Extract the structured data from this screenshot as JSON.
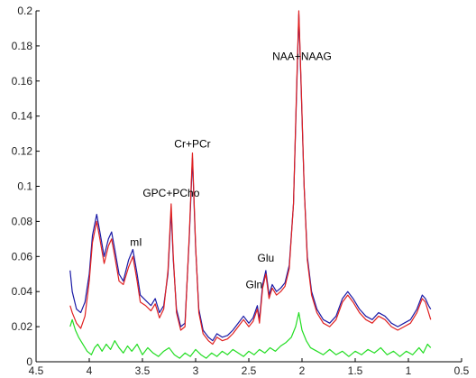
{
  "chart_data": {
    "type": "line",
    "title": "",
    "xlabel": "",
    "ylabel": "",
    "xlim": [
      4.5,
      0.5
    ],
    "ylim": [
      0,
      0.2
    ],
    "x_reversed": true,
    "grid": false,
    "x_ticks": [
      "4.5",
      "4",
      "3.5",
      "3",
      "2.5",
      "2",
      "1.5",
      "1",
      "0.5"
    ],
    "x_tick_values": [
      4.5,
      4,
      3.5,
      3,
      2.5,
      2,
      1.5,
      1,
      0.5
    ],
    "y_ticks": [
      "0",
      "0.02",
      "0.04",
      "0.06",
      "0.08",
      "0.1",
      "0.12",
      "0.14",
      "0.16",
      "0.18",
      "0.2"
    ],
    "y_tick_values": [
      0,
      0.02,
      0.04,
      0.06,
      0.08,
      0.1,
      0.12,
      0.14,
      0.16,
      0.18,
      0.2
    ],
    "series": [
      {
        "color": "#1a1aa6",
        "style": "solid",
        "points": [
          [
            4.18,
            0.052
          ],
          [
            4.16,
            0.04
          ],
          [
            4.12,
            0.03
          ],
          [
            4.08,
            0.028
          ],
          [
            4.04,
            0.034
          ],
          [
            4.0,
            0.05
          ],
          [
            3.97,
            0.072
          ],
          [
            3.93,
            0.084
          ],
          [
            3.9,
            0.074
          ],
          [
            3.86,
            0.06
          ],
          [
            3.82,
            0.07
          ],
          [
            3.79,
            0.074
          ],
          [
            3.76,
            0.064
          ],
          [
            3.72,
            0.05
          ],
          [
            3.68,
            0.046
          ],
          [
            3.63,
            0.058
          ],
          [
            3.59,
            0.064
          ],
          [
            3.55,
            0.05
          ],
          [
            3.52,
            0.038
          ],
          [
            3.47,
            0.035
          ],
          [
            3.42,
            0.032
          ],
          [
            3.38,
            0.036
          ],
          [
            3.34,
            0.028
          ],
          [
            3.3,
            0.032
          ],
          [
            3.26,
            0.05
          ],
          [
            3.23,
            0.086
          ],
          [
            3.21,
            0.058
          ],
          [
            3.18,
            0.03
          ],
          [
            3.14,
            0.02
          ],
          [
            3.1,
            0.022
          ],
          [
            3.06,
            0.07
          ],
          [
            3.03,
            0.116
          ],
          [
            3.0,
            0.065
          ],
          [
            2.97,
            0.03
          ],
          [
            2.93,
            0.018
          ],
          [
            2.88,
            0.014
          ],
          [
            2.84,
            0.012
          ],
          [
            2.8,
            0.016
          ],
          [
            2.75,
            0.014
          ],
          [
            2.7,
            0.015
          ],
          [
            2.65,
            0.018
          ],
          [
            2.6,
            0.022
          ],
          [
            2.55,
            0.026
          ],
          [
            2.5,
            0.022
          ],
          [
            2.46,
            0.025
          ],
          [
            2.42,
            0.032
          ],
          [
            2.4,
            0.024
          ],
          [
            2.37,
            0.044
          ],
          [
            2.34,
            0.052
          ],
          [
            2.31,
            0.038
          ],
          [
            2.28,
            0.044
          ],
          [
            2.24,
            0.04
          ],
          [
            2.2,
            0.042
          ],
          [
            2.16,
            0.045
          ],
          [
            2.12,
            0.055
          ],
          [
            2.08,
            0.09
          ],
          [
            2.05,
            0.155
          ],
          [
            2.03,
            0.198
          ],
          [
            2.01,
            0.16
          ],
          [
            1.98,
            0.1
          ],
          [
            1.95,
            0.06
          ],
          [
            1.91,
            0.04
          ],
          [
            1.86,
            0.03
          ],
          [
            1.8,
            0.024
          ],
          [
            1.74,
            0.022
          ],
          [
            1.68,
            0.026
          ],
          [
            1.62,
            0.036
          ],
          [
            1.57,
            0.04
          ],
          [
            1.52,
            0.036
          ],
          [
            1.46,
            0.03
          ],
          [
            1.4,
            0.026
          ],
          [
            1.34,
            0.024
          ],
          [
            1.28,
            0.028
          ],
          [
            1.22,
            0.026
          ],
          [
            1.16,
            0.022
          ],
          [
            1.1,
            0.02
          ],
          [
            1.04,
            0.022
          ],
          [
            0.98,
            0.024
          ],
          [
            0.92,
            0.03
          ],
          [
            0.87,
            0.038
          ],
          [
            0.84,
            0.036
          ],
          [
            0.81,
            0.032
          ],
          [
            0.79,
            0.03
          ]
        ]
      },
      {
        "color": "#e02020",
        "style": "solid",
        "points": [
          [
            4.18,
            0.032
          ],
          [
            4.16,
            0.028
          ],
          [
            4.12,
            0.022
          ],
          [
            4.08,
            0.019
          ],
          [
            4.04,
            0.026
          ],
          [
            4.0,
            0.046
          ],
          [
            3.97,
            0.068
          ],
          [
            3.93,
            0.08
          ],
          [
            3.9,
            0.07
          ],
          [
            3.86,
            0.056
          ],
          [
            3.82,
            0.066
          ],
          [
            3.79,
            0.07
          ],
          [
            3.76,
            0.06
          ],
          [
            3.72,
            0.046
          ],
          [
            3.68,
            0.044
          ],
          [
            3.63,
            0.054
          ],
          [
            3.59,
            0.06
          ],
          [
            3.55,
            0.046
          ],
          [
            3.52,
            0.034
          ],
          [
            3.47,
            0.032
          ],
          [
            3.42,
            0.029
          ],
          [
            3.38,
            0.033
          ],
          [
            3.34,
            0.025
          ],
          [
            3.3,
            0.03
          ],
          [
            3.26,
            0.052
          ],
          [
            3.23,
            0.09
          ],
          [
            3.21,
            0.06
          ],
          [
            3.18,
            0.028
          ],
          [
            3.14,
            0.018
          ],
          [
            3.1,
            0.02
          ],
          [
            3.06,
            0.072
          ],
          [
            3.03,
            0.119
          ],
          [
            3.0,
            0.066
          ],
          [
            2.97,
            0.028
          ],
          [
            2.93,
            0.016
          ],
          [
            2.88,
            0.012
          ],
          [
            2.84,
            0.01
          ],
          [
            2.8,
            0.014
          ],
          [
            2.75,
            0.012
          ],
          [
            2.7,
            0.013
          ],
          [
            2.65,
            0.016
          ],
          [
            2.6,
            0.02
          ],
          [
            2.55,
            0.024
          ],
          [
            2.5,
            0.02
          ],
          [
            2.46,
            0.023
          ],
          [
            2.42,
            0.03
          ],
          [
            2.4,
            0.022
          ],
          [
            2.37,
            0.042
          ],
          [
            2.34,
            0.05
          ],
          [
            2.31,
            0.036
          ],
          [
            2.28,
            0.042
          ],
          [
            2.24,
            0.038
          ],
          [
            2.2,
            0.04
          ],
          [
            2.16,
            0.043
          ],
          [
            2.12,
            0.053
          ],
          [
            2.08,
            0.09
          ],
          [
            2.05,
            0.158
          ],
          [
            2.03,
            0.2
          ],
          [
            2.01,
            0.162
          ],
          [
            1.98,
            0.1
          ],
          [
            1.95,
            0.058
          ],
          [
            1.91,
            0.038
          ],
          [
            1.86,
            0.028
          ],
          [
            1.8,
            0.022
          ],
          [
            1.74,
            0.02
          ],
          [
            1.68,
            0.024
          ],
          [
            1.62,
            0.034
          ],
          [
            1.57,
            0.038
          ],
          [
            1.52,
            0.034
          ],
          [
            1.46,
            0.028
          ],
          [
            1.4,
            0.024
          ],
          [
            1.34,
            0.022
          ],
          [
            1.28,
            0.026
          ],
          [
            1.22,
            0.024
          ],
          [
            1.16,
            0.02
          ],
          [
            1.1,
            0.018
          ],
          [
            1.04,
            0.02
          ],
          [
            0.98,
            0.022
          ],
          [
            0.92,
            0.028
          ],
          [
            0.87,
            0.036
          ],
          [
            0.84,
            0.034
          ],
          [
            0.81,
            0.028
          ],
          [
            0.79,
            0.024
          ]
        ]
      },
      {
        "color": "#22dd22",
        "style": "solid",
        "points": [
          [
            4.18,
            0.02
          ],
          [
            4.16,
            0.024
          ],
          [
            4.13,
            0.018
          ],
          [
            4.1,
            0.014
          ],
          [
            4.06,
            0.01
          ],
          [
            4.02,
            0.006
          ],
          [
            3.98,
            0.004
          ],
          [
            3.95,
            0.008
          ],
          [
            3.92,
            0.01
          ],
          [
            3.88,
            0.006
          ],
          [
            3.84,
            0.01
          ],
          [
            3.8,
            0.007
          ],
          [
            3.76,
            0.012
          ],
          [
            3.72,
            0.008
          ],
          [
            3.68,
            0.005
          ],
          [
            3.64,
            0.009
          ],
          [
            3.6,
            0.006
          ],
          [
            3.55,
            0.01
          ],
          [
            3.5,
            0.004
          ],
          [
            3.45,
            0.008
          ],
          [
            3.4,
            0.005
          ],
          [
            3.35,
            0.003
          ],
          [
            3.3,
            0.006
          ],
          [
            3.25,
            0.008
          ],
          [
            3.2,
            0.004
          ],
          [
            3.15,
            0.002
          ],
          [
            3.1,
            0.005
          ],
          [
            3.05,
            0.003
          ],
          [
            3.0,
            0.007
          ],
          [
            2.95,
            0.004
          ],
          [
            2.9,
            0.002
          ],
          [
            2.85,
            0.005
          ],
          [
            2.8,
            0.003
          ],
          [
            2.75,
            0.006
          ],
          [
            2.7,
            0.004
          ],
          [
            2.65,
            0.007
          ],
          [
            2.6,
            0.005
          ],
          [
            2.55,
            0.003
          ],
          [
            2.5,
            0.006
          ],
          [
            2.45,
            0.004
          ],
          [
            2.4,
            0.007
          ],
          [
            2.35,
            0.005
          ],
          [
            2.3,
            0.008
          ],
          [
            2.25,
            0.006
          ],
          [
            2.2,
            0.009
          ],
          [
            2.15,
            0.011
          ],
          [
            2.1,
            0.014
          ],
          [
            2.06,
            0.02
          ],
          [
            2.03,
            0.028
          ],
          [
            2.0,
            0.018
          ],
          [
            1.96,
            0.012
          ],
          [
            1.92,
            0.008
          ],
          [
            1.86,
            0.006
          ],
          [
            1.8,
            0.004
          ],
          [
            1.74,
            0.007
          ],
          [
            1.68,
            0.004
          ],
          [
            1.62,
            0.006
          ],
          [
            1.56,
            0.003
          ],
          [
            1.5,
            0.006
          ],
          [
            1.44,
            0.004
          ],
          [
            1.38,
            0.007
          ],
          [
            1.32,
            0.005
          ],
          [
            1.26,
            0.008
          ],
          [
            1.2,
            0.004
          ],
          [
            1.14,
            0.006
          ],
          [
            1.08,
            0.003
          ],
          [
            1.02,
            0.006
          ],
          [
            0.96,
            0.004
          ],
          [
            0.9,
            0.008
          ],
          [
            0.86,
            0.005
          ],
          [
            0.82,
            0.01
          ],
          [
            0.79,
            0.008
          ]
        ]
      }
    ],
    "annotations": [
      {
        "text": "NAA+NAAG",
        "x": 2.0,
        "y": 0.172
      },
      {
        "text": "Cr+PCr",
        "x": 3.03,
        "y": 0.122
      },
      {
        "text": "GPC+PCho",
        "x": 3.23,
        "y": 0.094
      },
      {
        "text": "mI",
        "x": 3.56,
        "y": 0.066
      },
      {
        "text": "Glu",
        "x": 2.34,
        "y": 0.057
      },
      {
        "text": "Gln",
        "x": 2.45,
        "y": 0.042
      }
    ]
  }
}
